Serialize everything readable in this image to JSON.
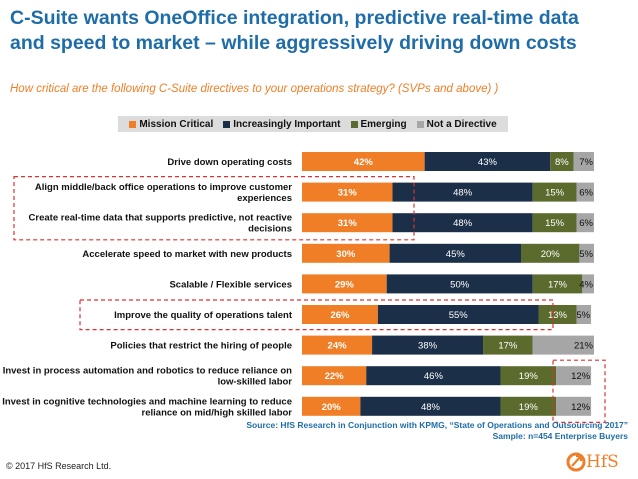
{
  "header": {
    "title_line1": "C-Suite wants OneOffice integration, predictive real-time data",
    "title_line2": "and speed to market – while aggressively driving down costs",
    "subtitle": "How critical are the following C-Suite directives to your operations strategy? (SVPs and above) )"
  },
  "colors": {
    "mission_critical": "#f07e26",
    "increasingly_important": "#1b2f48",
    "emerging": "#5b6b2e",
    "not_a_directive": "#a6a6a6",
    "title": "#1f6da8",
    "highlight": "#e03030"
  },
  "chart_data": {
    "type": "bar",
    "orientation": "horizontal",
    "stacked": true,
    "percent_suffix": "%",
    "legend_position": "top",
    "categories": [
      [
        "Drive down operating costs"
      ],
      [
        "Align middle/back office operations to improve customer",
        "experiences"
      ],
      [
        "Create real-time data that supports predictive, not reactive",
        "decisions"
      ],
      [
        "Accelerate speed to market with new products"
      ],
      [
        "Scalable / Flexible services"
      ],
      [
        "Improve the quality of operations talent"
      ],
      [
        "Policies that restrict the hiring of people"
      ],
      [
        "Invest in process automation and robotics to reduce reliance on",
        "low-skilled labor"
      ],
      [
        "Invest in cognitive technologies and machine learning to reduce",
        "reliance on mid/high skilled labor"
      ]
    ],
    "series": [
      {
        "name": "Mission Critical",
        "values": [
          42,
          31,
          31,
          30,
          29,
          26,
          24,
          22,
          20
        ]
      },
      {
        "name": "Increasingly Important",
        "values": [
          43,
          48,
          48,
          45,
          50,
          55,
          38,
          46,
          48
        ]
      },
      {
        "name": "Emerging",
        "values": [
          8,
          15,
          15,
          20,
          17,
          13,
          17,
          19,
          19
        ]
      },
      {
        "name": "Not a Directive",
        "values": [
          7,
          6,
          6,
          5,
          4,
          5,
          21,
          12,
          12
        ]
      }
    ],
    "xlim": [
      0,
      100
    ],
    "highlighted_rows": [
      1,
      2,
      5
    ],
    "highlighted_cells": {
      "series": 3,
      "rows": [
        7,
        8
      ]
    }
  },
  "source": {
    "line1": "Source: HfS Research in Conjunction with KPMG, “State of Operations and Outsourcing 2017”",
    "line2": "Sample: n=454 Enterprise Buyers"
  },
  "footer": {
    "copyright": "© 2017 HfS Research Ltd.",
    "logo_text": "HfS",
    "logo_icon": "hfs-arrow-icon"
  }
}
